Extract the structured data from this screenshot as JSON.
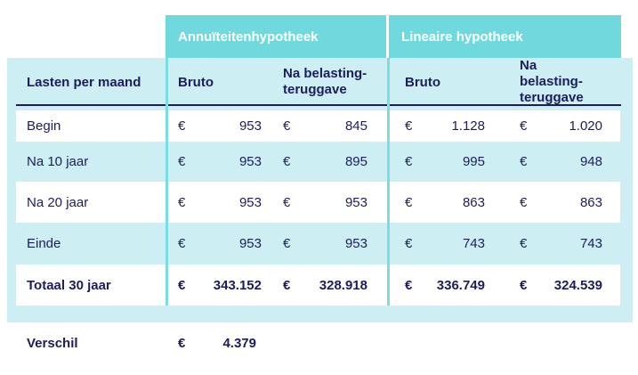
{
  "colors": {
    "teal": "#6FD9DE",
    "teal_line": "#79DDE2",
    "cyan": "#CDEFF3",
    "navy": "#1C1C5E"
  },
  "table": {
    "currency": "€",
    "group_headers": [
      "Annuïteitenhypotheek",
      "Lineaire hypotheek"
    ],
    "corner_label": "Lasten per maand",
    "sub_headers": [
      "Bruto",
      "Na belasting-teruggave",
      "Bruto",
      "Na belasting-teruggave"
    ],
    "rows": [
      {
        "label": "Begin",
        "values": [
          "953",
          "845",
          "1.128",
          "1.020"
        ]
      },
      {
        "label": "Na 10 jaar",
        "values": [
          "953",
          "895",
          "995",
          "948"
        ]
      },
      {
        "label": "Na 20 jaar",
        "values": [
          "953",
          "953",
          "863",
          "863"
        ]
      },
      {
        "label": "Einde",
        "values": [
          "953",
          "953",
          "743",
          "743"
        ]
      }
    ],
    "total_row": {
      "label": "Totaal 30 jaar",
      "values": [
        "343.152",
        "328.918",
        "336.749",
        "324.539"
      ]
    },
    "difference_row": {
      "label": "Verschil",
      "value": "4.379"
    }
  },
  "chart_data": {
    "type": "table",
    "title": "Lasten per maand",
    "column_groups": [
      "Annuïteitenhypotheek",
      "Lineaire hypotheek"
    ],
    "columns": [
      "Lasten per maand",
      "Annuïteitenhypotheek Bruto",
      "Annuïteitenhypotheek Na belasting-teruggave",
      "Lineaire hypotheek Bruto",
      "Lineaire hypotheek Na belasting-teruggave"
    ],
    "rows": [
      [
        "Begin",
        "€ 953",
        "€ 845",
        "€ 1.128",
        "€ 1.020"
      ],
      [
        "Na 10 jaar",
        "€ 953",
        "€ 895",
        "€ 995",
        "€ 948"
      ],
      [
        "Na 20 jaar",
        "€ 953",
        "€ 953",
        "€ 863",
        "€ 863"
      ],
      [
        "Einde",
        "€ 953",
        "€ 953",
        "€ 743",
        "€ 743"
      ],
      [
        "Totaal 30 jaar",
        "€ 343.152",
        "€ 328.918",
        "€ 336.749",
        "€ 324.539"
      ],
      [
        "Verschil",
        "€ 4.379",
        "",
        "",
        ""
      ]
    ]
  }
}
